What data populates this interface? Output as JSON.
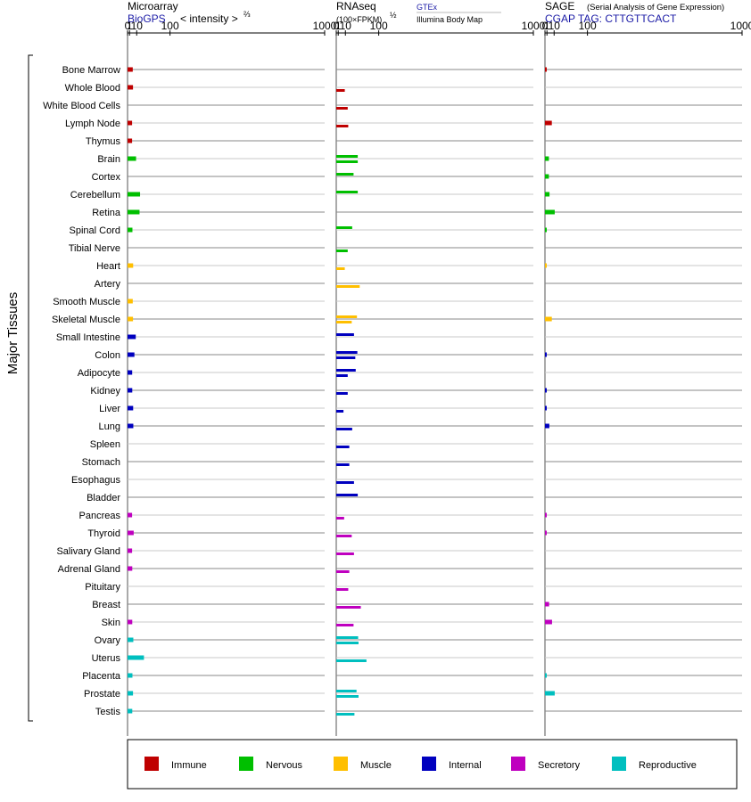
{
  "chart_data": {
    "type": "bar",
    "ylabel": "Major Tissues",
    "tissues": [
      "Bone Marrow",
      "Whole Blood",
      "White Blood Cells",
      "Lymph Node",
      "Thymus",
      "Brain",
      "Cortex",
      "Cerebellum",
      "Retina",
      "Spinal Cord",
      "Tibial Nerve",
      "Heart",
      "Artery",
      "Smooth Muscle",
      "Skeletal Muscle",
      "Small Intestine",
      "Colon",
      "Adipocyte",
      "Kidney",
      "Liver",
      "Lung",
      "Spleen",
      "Stomach",
      "Esophagus",
      "Bladder",
      "Pancreas",
      "Thyroid",
      "Salivary Gland",
      "Adrenal Gland",
      "Pituitary",
      "Breast",
      "Skin",
      "Ovary",
      "Uterus",
      "Placenta",
      "Prostate",
      "Testis"
    ],
    "tissue_category": [
      "immune",
      "immune",
      "immune",
      "immune",
      "immune",
      "nervous",
      "nervous",
      "nervous",
      "nervous",
      "nervous",
      "nervous",
      "muscle",
      "muscle",
      "muscle",
      "muscle",
      "internal",
      "internal",
      "internal",
      "internal",
      "internal",
      "internal",
      "internal",
      "internal",
      "internal",
      "internal",
      "secretory",
      "secretory",
      "secretory",
      "secretory",
      "secretory",
      "secretory",
      "secretory",
      "reproductive",
      "reproductive",
      "reproductive",
      "reproductive",
      "reproductive"
    ],
    "ticks": [
      "0",
      "1",
      "10",
      "100",
      "1000"
    ],
    "tick_values": [
      0,
      1,
      10,
      100,
      1000
    ],
    "panels": [
      {
        "key": "microarray",
        "title": "Microarray",
        "subtitle": "BioGPS",
        "scale_label": "< intensity >",
        "scale_exp": "⅔",
        "values": [
          4.3,
          4.6,
          null,
          3.5,
          3.5,
          9,
          null,
          16,
          15,
          3.9,
          null,
          4.8,
          null,
          4.3,
          4.6,
          8.5,
          6.5,
          3.6,
          3.7,
          4.8,
          5.0,
          null,
          null,
          null,
          null,
          3.5,
          5.5,
          3.5,
          3.7,
          null,
          null,
          3.7,
          5.0,
          24,
          3.9,
          4.6,
          3.7
        ]
      },
      {
        "key": "rnaseq",
        "title": "RNAseq",
        "subtitle": "(100×FPKM)",
        "subtitle_exp": "½",
        "sources": [
          "GTEx",
          "Illumina Body Map"
        ],
        "values_gtex": [
          null,
          null,
          null,
          null,
          null,
          36,
          26,
          36,
          null,
          23,
          null,
          null,
          null,
          null,
          34,
          27,
          35,
          31,
          null,
          null,
          null,
          null,
          null,
          null,
          36,
          null,
          null,
          null,
          null,
          null,
          null,
          null,
          37,
          null,
          null,
          33,
          null
        ],
        "values_ibm": [
          null,
          9,
          14,
          15,
          null,
          36,
          null,
          null,
          null,
          null,
          14,
          9,
          41,
          null,
          22,
          null,
          30,
          14,
          14,
          7,
          23,
          17,
          17,
          27,
          null,
          8,
          22,
          27,
          17,
          15,
          44,
          26,
          38,
          60,
          null,
          38,
          28
        ]
      },
      {
        "key": "sage",
        "title": "SAGE",
        "subtitle_note": "(Serial Analysis of Gene Expression)",
        "subtitle": "CGAP TAG: CTTGTTCACT",
        "values": [
          0.01,
          null,
          null,
          6.5,
          null,
          2.8,
          2.8,
          3.5,
          11,
          0.01,
          null,
          0.01,
          null,
          null,
          6.5,
          null,
          0.01,
          null,
          0.01,
          0.01,
          3.3,
          null,
          null,
          null,
          null,
          0.01,
          0.01,
          null,
          null,
          null,
          3.0,
          6.8,
          null,
          null,
          0.01,
          11,
          null
        ]
      }
    ],
    "legend": [
      {
        "key": "immune",
        "label": "Immune",
        "color": "#bf0000"
      },
      {
        "key": "nervous",
        "label": "Nervous",
        "color": "#00bf00"
      },
      {
        "key": "muscle",
        "label": "Muscle",
        "color": "#ffbf00"
      },
      {
        "key": "internal",
        "label": "Internal",
        "color": "#0000bf"
      },
      {
        "key": "secretory",
        "label": "Secretory",
        "color": "#bf00bf"
      },
      {
        "key": "reproductive",
        "label": "Reproductive",
        "color": "#00bfbf"
      }
    ],
    "legend_placement": "bottom",
    "xscale": "power"
  }
}
